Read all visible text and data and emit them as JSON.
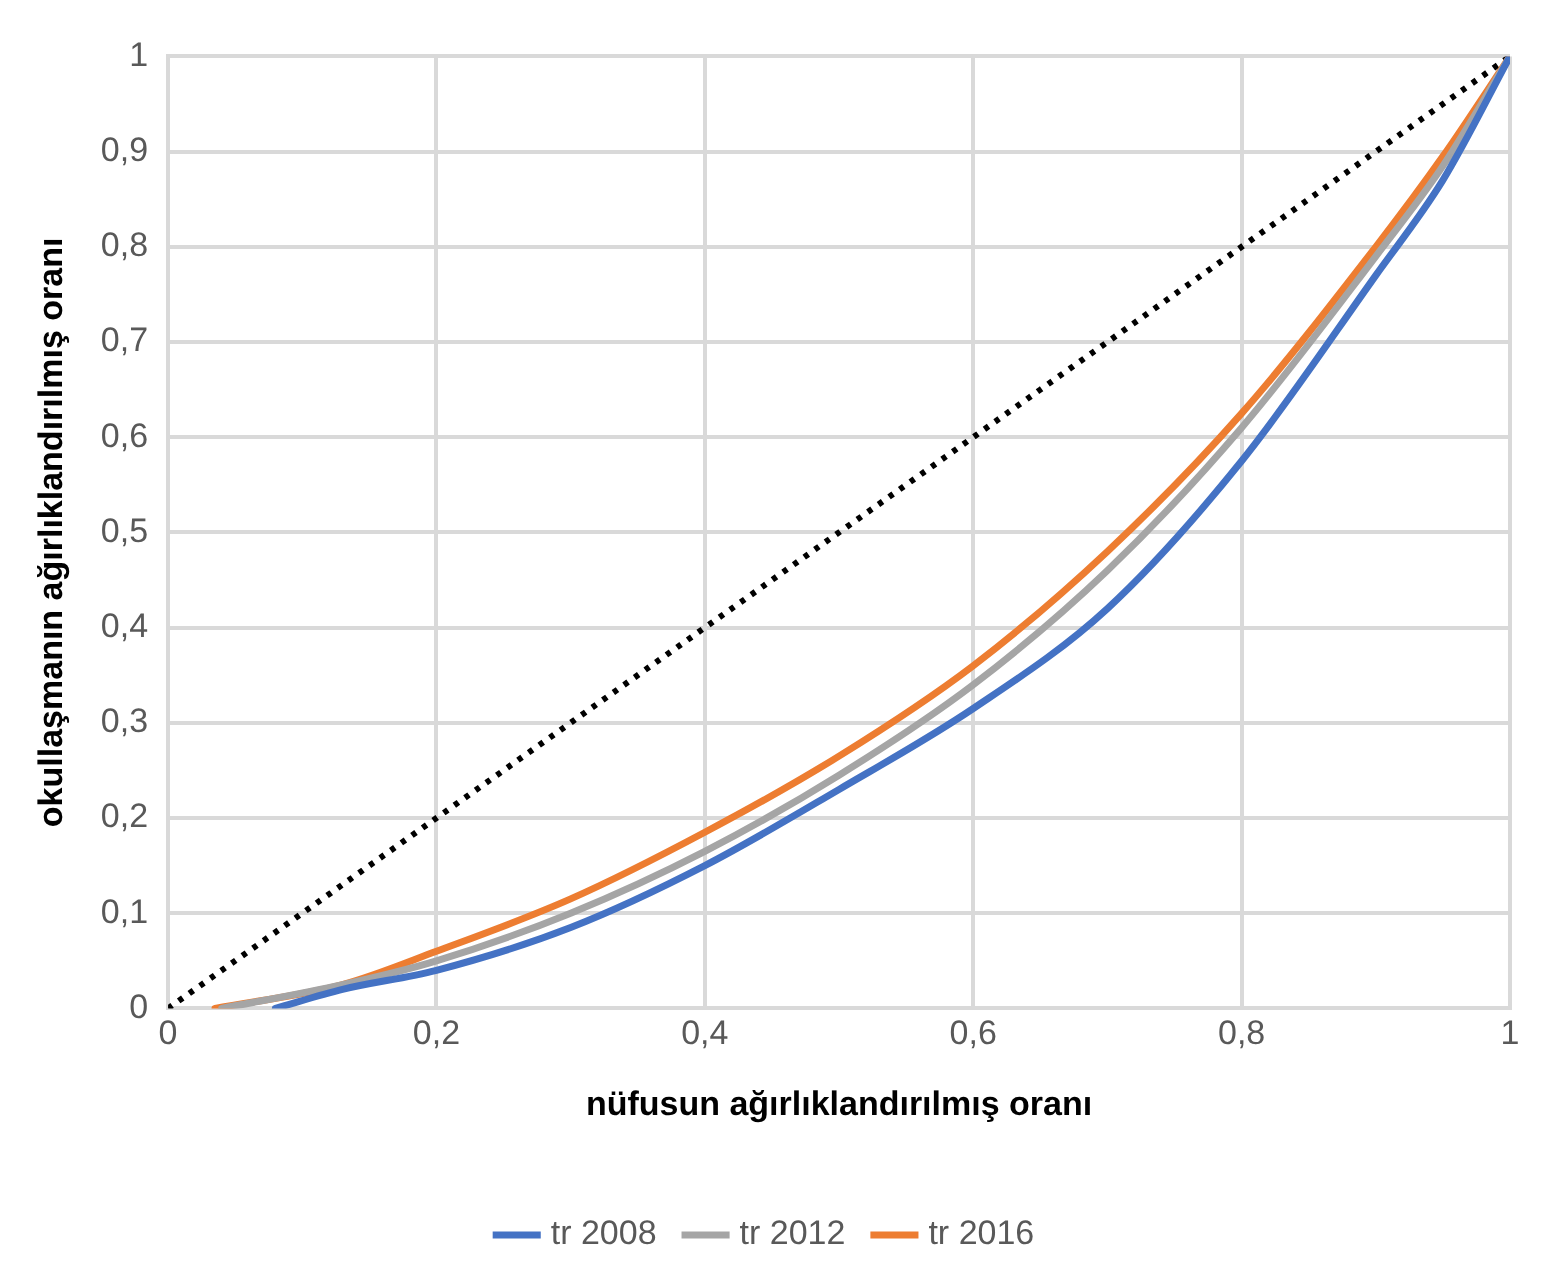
{
  "chart_data": {
    "type": "line",
    "xlabel": "nüfusun ağırlıklandırılmış oranı",
    "ylabel": "okullaşmanın ağırlıklandırılmış oranı",
    "xlim": [
      0,
      1
    ],
    "ylim": [
      0,
      1
    ],
    "xticks": [
      0,
      {
        "value": 0.2,
        "label": "0,2"
      },
      {
        "value": 0.4,
        "label": "0,4"
      },
      {
        "value": 0.6,
        "label": "0,6"
      },
      {
        "value": 0.8,
        "label": "0,8"
      },
      1
    ],
    "yticks": [
      0,
      {
        "value": 0.1,
        "label": "0,1"
      },
      {
        "value": 0.2,
        "label": "0,2"
      },
      {
        "value": 0.3,
        "label": "0,3"
      },
      {
        "value": 0.4,
        "label": "0,4"
      },
      {
        "value": 0.5,
        "label": "0,5"
      },
      {
        "value": 0.6,
        "label": "0,6"
      },
      {
        "value": 0.7,
        "label": "0,7"
      },
      {
        "value": 0.8,
        "label": "0,8"
      },
      {
        "value": 0.9,
        "label": "0,9"
      },
      1
    ],
    "grid": true,
    "legend": "bottom",
    "marker": "none",
    "series": [
      {
        "name": "tr 2008",
        "color": "#4472c4",
        "x": [
          0.08,
          0.13,
          0.2,
          0.3,
          0.4,
          0.5,
          0.6,
          0.7,
          0.8,
          0.9,
          0.95,
          1
        ],
        "values": [
          0,
          0.02,
          0.04,
          0.085,
          0.15,
          0.23,
          0.315,
          0.42,
          0.575,
          0.77,
          0.87,
          1
        ]
      },
      {
        "name": "tr 2012",
        "color": "#a5a5a5",
        "x": [
          0.04,
          0.13,
          0.2,
          0.3,
          0.4,
          0.5,
          0.6,
          0.7,
          0.8,
          0.9,
          0.95,
          1
        ],
        "values": [
          0,
          0.025,
          0.05,
          0.1,
          0.165,
          0.245,
          0.34,
          0.46,
          0.61,
          0.79,
          0.885,
          1
        ]
      },
      {
        "name": "tr 2016",
        "color": "#ed7d31",
        "x": [
          0.035,
          0.13,
          0.2,
          0.3,
          0.4,
          0.5,
          0.6,
          0.7,
          0.8,
          0.9,
          0.95,
          1
        ],
        "values": [
          0,
          0.025,
          0.06,
          0.115,
          0.185,
          0.265,
          0.36,
          0.48,
          0.625,
          0.8,
          0.895,
          1
        ]
      },
      {
        "color": "#000000",
        "line_style": "dotted",
        "x": [
          0,
          1
        ],
        "values": [
          0,
          1
        ]
      }
    ]
  }
}
